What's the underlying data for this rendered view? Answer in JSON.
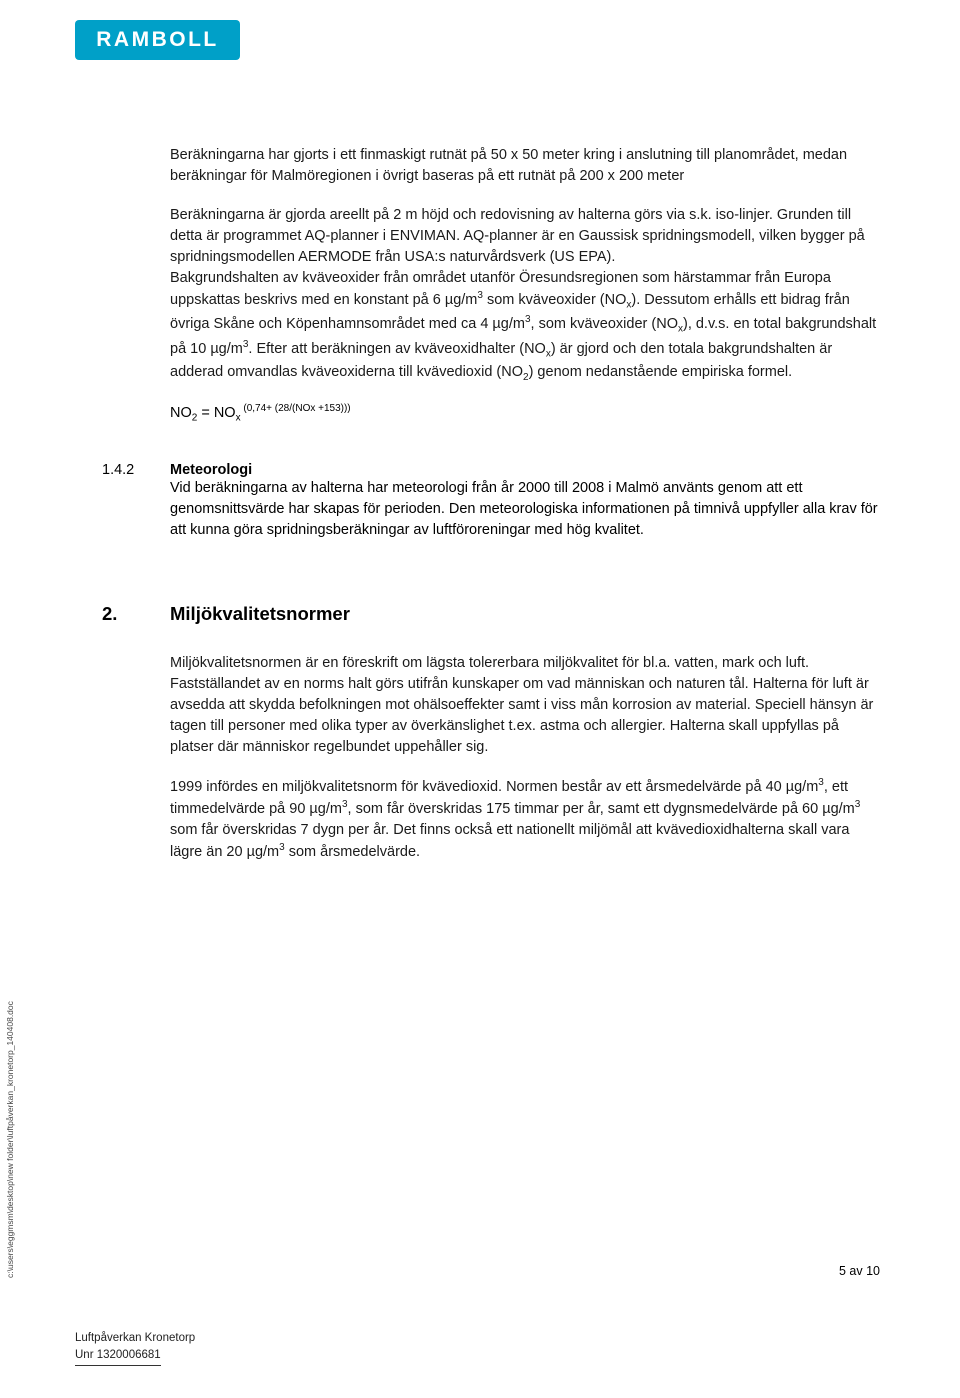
{
  "logo": {
    "text": "RAMBOLL"
  },
  "para1": "Beräkningarna har gjorts i ett finmaskigt rutnät på 50 x 50 meter kring i anslutning till planområdet, medan beräkningar för Malmöregionen i övrigt baseras på ett rutnät på 200 x 200 meter",
  "para2_a": "Beräkningarna är gjorda areellt på 2 m höjd och redovisning av halterna görs via s.k. iso-linjer. Grunden till detta är programmet AQ-planner i ENVIMAN. AQ-planner är en Gaussisk spridningsmodell, vilken bygger på spridningsmodellen AERMODE från USA:s naturvårdsverk (US EPA).",
  "para2_b": "Bakgrundshalten av kväveoxider från området utanför Öresundsregionen som härstammar från Europa uppskattas beskrivs med en konstant på 6 ",
  "para2_c": " som kväveoxider (NO",
  "para2_d": "). Dessutom erhålls ett bidrag från övriga Skåne och Köpenhamnsområdet med ca 4 ",
  "para2_e": ", som kväveoxider (NO",
  "para2_f": "), d.v.s. en total bakgrundshalt på ",
  "para2_g": " Efter att beräkningen av kväveoxidhalter (NO",
  "para2_h": ") är gjord och den totala bakgrundshalten är adderad omvandlas kväveoxiderna till kvävedioxid (NO",
  "para2_i": ") genom nedanstående empiriska formel.",
  "unit_ug": "µg/m",
  "unit_10ug": "10 µg/m",
  "formula_lhs": "NO",
  "formula_eq": " = NO",
  "formula_exp": " (0,74+ (28/(NOx +153)))",
  "sec142_num": "1.4.2",
  "sec142_title": "Meteorologi",
  "sec142_body": "Vid beräkningarna av halterna har meteorologi från år 2000 till 2008 i Malmö använts genom att ett genomsnittsvärde har skapas för perioden. Den meteorologiska informationen på timnivå uppfyller alla krav för att kunna göra spridningsberäkningar av luftföroreningar med hög kvalitet.",
  "sec2_num": "2.",
  "sec2_title": "Miljökvalitetsnormer",
  "sec2_p1": "Miljökvalitetsnormen är en föreskrift om lägsta tolererbara miljökvalitet för bl.a. vatten, mark och luft. Fastställandet av en norms halt görs utifrån kunskaper om vad människan och naturen tål. Halterna för luft är avsedda att skydda befolkningen mot ohälsoeffekter samt i viss mån korrosion av material. Speciell hänsyn är tagen till personer med olika typer av överkänslighet t.ex. astma och allergier. Halterna skall uppfyllas på platser där människor regelbundet uppehåller sig.",
  "sec2_p2_a": "1999 infördes en miljökvalitetsnorm för kvävedioxid. Normen består av ett årsmedelvärde på 40 µg/m",
  "sec2_p2_b": ", ett timmedelvärde på 90 µg/m",
  "sec2_p2_c": ", som får överskridas 175 timmar per år, samt ett dygnsmedelvärde på 60 µg/m",
  "sec2_p2_d": " som får överskridas 7 dygn per år. Det finns också ett nationellt miljömål att kvävedioxidhalterna skall vara lägre än 20 ",
  "sec2_p2_e": " som årsmedelvärde.",
  "footer_path": "c:\\users\\eggmsm\\desktop\\new folder\\luftpåverkan_kronetorp_140408.doc",
  "page_num": "5 av 10",
  "footer_line1": "Luftpåverkan Kronetorp",
  "footer_line2": "Unr 1320006681"
}
